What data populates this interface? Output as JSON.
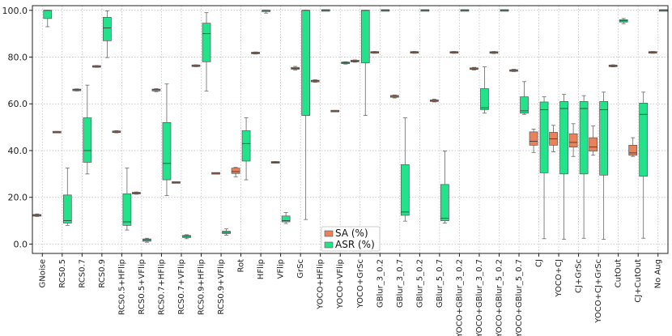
{
  "chart_data": {
    "type": "box",
    "title": "",
    "xlabel": "",
    "ylabel": "",
    "ylim": [
      -4,
      102
    ],
    "yticks": [
      0.0,
      20.0,
      40.0,
      60.0,
      80.0,
      100.0
    ],
    "ytick_labels": [
      "0.0",
      "20.0",
      "40.0",
      "60.0",
      "80.0",
      "100.0"
    ],
    "grid": true,
    "legend_position": "bottom-center",
    "categories": [
      "GNoise",
      "RCS0.5",
      "RCS0.7",
      "RCS0.9",
      "RCS0.5+HFlip",
      "RCS0.5+VFlip",
      "RCS0.7+HFlip",
      "RCS0.7+VFlip",
      "RCS0.9+HFlip",
      "RCS0.9+VFlip",
      "Rot",
      "HFlip",
      "VFlip",
      "GrSc",
      "YOCO+HFlip",
      "YOCO+VFlip",
      "YOCO+GrSc",
      "GBlur_3_0.2",
      "GBlur_3_0.7",
      "GBlur_5_0.2",
      "GBlur_5_0.7",
      "YOCO+GBlur_3_0.2",
      "YOCO+GBlur_3_0.7",
      "YOCO+GBlur_5_0.2",
      "YOCO+GBlur_5_0.7",
      "CJ",
      "YOCO+CJ",
      "CJ+GrSc",
      "YOCO+CJ+GrSc",
      "CutOut",
      "CJ+CutOut",
      "No Aug"
    ],
    "series": [
      {
        "name": "SA (%)",
        "color": "#E8825A",
        "boxes": [
          [
            11.8,
            12.0,
            12.3,
            12.6,
            12.9
          ],
          [
            47.6,
            47.7,
            47.9,
            48.1,
            48.2
          ],
          [
            65.5,
            65.7,
            66.0,
            66.2,
            66.4
          ],
          [
            75.6,
            75.8,
            76.0,
            76.2,
            76.4
          ],
          [
            47.6,
            47.8,
            48.0,
            48.3,
            48.5
          ],
          [
            21.3,
            21.5,
            21.8,
            22.1,
            22.3
          ],
          [
            65.2,
            65.5,
            66.0,
            66.3,
            66.5
          ],
          [
            26.1,
            26.2,
            26.4,
            26.5,
            26.6
          ],
          [
            75.9,
            76.1,
            76.3,
            76.5,
            76.7
          ],
          [
            30.0,
            30.1,
            30.3,
            30.4,
            30.5
          ],
          [
            28.8,
            30.2,
            31.0,
            32.5,
            32.8
          ],
          [
            81.3,
            81.5,
            81.8,
            82.0,
            82.2
          ],
          [
            34.6,
            34.7,
            35.0,
            35.2,
            35.3
          ],
          [
            74.5,
            74.8,
            75.2,
            75.6,
            76.0
          ],
          [
            69.2,
            69.4,
            69.8,
            70.1,
            70.3
          ],
          [
            56.6,
            56.7,
            56.9,
            57.1,
            57.2
          ],
          [
            77.8,
            78.0,
            78.3,
            78.6,
            78.8
          ],
          [
            81.6,
            81.8,
            82.0,
            82.2,
            82.4
          ],
          [
            62.5,
            62.8,
            63.2,
            63.6,
            63.8
          ],
          [
            81.6,
            81.8,
            82.0,
            82.2,
            82.4
          ],
          [
            60.8,
            61.0,
            61.4,
            61.7,
            62.0
          ],
          [
            81.6,
            81.8,
            82.0,
            82.2,
            82.4
          ],
          [
            74.5,
            74.8,
            75.0,
            75.3,
            75.6
          ],
          [
            81.5,
            81.7,
            82.0,
            82.2,
            82.4
          ],
          [
            73.8,
            74.0,
            74.3,
            74.5,
            74.8
          ],
          [
            39.2,
            42.3,
            44.0,
            48.0,
            49.2
          ],
          [
            39.5,
            42.3,
            45.0,
            47.8,
            50.8
          ],
          [
            37.5,
            41.5,
            43.5,
            47.2,
            51.5
          ],
          [
            38.0,
            39.8,
            41.5,
            45.5,
            50.5
          ],
          [
            75.8,
            76.0,
            76.3,
            76.5,
            76.7
          ],
          [
            37.5,
            38.0,
            39.0,
            42.3,
            45.5
          ],
          [
            81.6,
            81.8,
            82.0,
            82.2,
            82.4
          ]
        ]
      },
      {
        "name": "ASR (%)",
        "color": "#22E38A",
        "boxes": [
          [
            93.0,
            96.5,
            100.0,
            100.0,
            100.0
          ],
          [
            8.0,
            9.0,
            10.0,
            21.0,
            32.5
          ],
          [
            30.0,
            35.0,
            40.0,
            54.0,
            68.0
          ],
          [
            79.8,
            87.0,
            92.5,
            97.0,
            99.8
          ],
          [
            6.0,
            8.0,
            9.5,
            21.5,
            32.5
          ],
          [
            0.8,
            1.2,
            1.8,
            2.2,
            2.5
          ],
          [
            20.8,
            27.5,
            34.5,
            52.0,
            68.5
          ],
          [
            2.3,
            2.8,
            3.3,
            3.7,
            4.0
          ],
          [
            65.5,
            78.0,
            90.0,
            94.5,
            99.0
          ],
          [
            3.8,
            4.5,
            5.0,
            5.5,
            6.5
          ],
          [
            27.5,
            35.5,
            43.0,
            48.5,
            54.0
          ],
          [
            98.8,
            99.5,
            100.0,
            100.0,
            100.0
          ],
          [
            8.8,
            9.5,
            10.0,
            12.0,
            13.5
          ],
          [
            10.5,
            55.0,
            100.0,
            100.0,
            100.0
          ],
          [
            99.8,
            99.9,
            100.0,
            100.0,
            100.0
          ],
          [
            77.0,
            77.3,
            77.5,
            77.8,
            78.0
          ],
          [
            55.0,
            77.5,
            100.0,
            100.0,
            100.0
          ],
          [
            99.8,
            99.9,
            100.0,
            100.0,
            100.0
          ],
          [
            9.8,
            12.3,
            13.7,
            34.0,
            54.0
          ],
          [
            99.8,
            99.9,
            100.0,
            100.0,
            100.0
          ],
          [
            9.0,
            10.0,
            11.0,
            25.5,
            39.8
          ],
          [
            99.8,
            99.9,
            100.0,
            100.0,
            100.0
          ],
          [
            56.0,
            57.5,
            58.3,
            66.5,
            75.8
          ],
          [
            99.8,
            99.9,
            100.0,
            100.0,
            100.0
          ],
          [
            55.5,
            56.0,
            57.0,
            63.0,
            69.5
          ],
          [
            2.3,
            30.5,
            57.5,
            60.8,
            63.0
          ],
          [
            2.0,
            30.0,
            58.0,
            61.0,
            64.0
          ],
          [
            2.5,
            30.0,
            58.0,
            61.0,
            63.5
          ],
          [
            2.0,
            29.5,
            57.5,
            61.0,
            65.0
          ],
          [
            94.3,
            95.0,
            95.5,
            96.0,
            96.5
          ],
          [
            2.5,
            29.0,
            55.5,
            60.3,
            65.0
          ],
          [
            99.8,
            99.9,
            100.0,
            100.0,
            100.0
          ]
        ]
      }
    ]
  }
}
